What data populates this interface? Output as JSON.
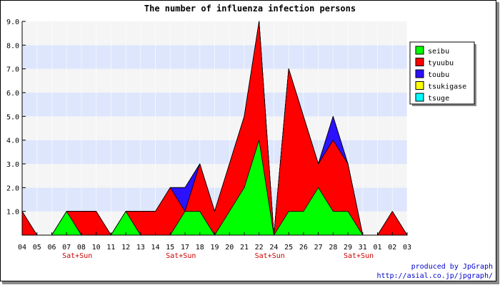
{
  "chart_data": {
    "type": "area",
    "stacked": true,
    "title": "The number of influenza infection persons",
    "x": [
      "04",
      "05",
      "06",
      "07",
      "08",
      "10",
      "11",
      "12",
      "13",
      "14",
      "15",
      "17",
      "18",
      "19",
      "20",
      "21",
      "22",
      "24",
      "25",
      "26",
      "27",
      "28",
      "29",
      "31",
      "01",
      "02",
      "03"
    ],
    "weekend_label": "Sat+Sun",
    "weekend_label_under": [
      "07",
      "15",
      "22",
      "29"
    ],
    "ylim": [
      0,
      9
    ],
    "yticks": [
      1,
      2,
      3,
      4,
      5,
      6,
      7,
      8,
      9
    ],
    "ytick_labels": [
      "1.0",
      "2.0",
      "3.0",
      "4.0",
      "5.0",
      "6.0",
      "7.0",
      "8.0",
      "9.0"
    ],
    "grid": "horizontal bands",
    "legend_position": "right",
    "series": [
      {
        "name": "seibu",
        "color": "#00ff00",
        "values": [
          0,
          0,
          0,
          1,
          0,
          0,
          0,
          1,
          0,
          0,
          0,
          1,
          1,
          0,
          1,
          2,
          4,
          0,
          1,
          1,
          2,
          1,
          1,
          0,
          0,
          0,
          0
        ]
      },
      {
        "name": "tyuubu",
        "color": "#ff0000",
        "values": [
          1,
          0,
          0,
          0,
          1,
          1,
          0,
          0,
          1,
          1,
          2,
          0,
          2,
          1,
          2,
          3,
          5,
          0,
          6,
          4,
          1,
          3,
          2,
          0,
          0,
          1,
          0
        ]
      },
      {
        "name": "toubu",
        "color": "#2b12ff",
        "values": [
          0,
          0,
          0,
          0,
          0,
          0,
          0,
          0,
          0,
          0,
          0,
          1,
          0,
          0,
          0,
          0,
          0,
          0,
          0,
          0,
          0,
          1,
          0,
          0,
          0,
          0,
          0
        ]
      },
      {
        "name": "tsukigase",
        "color": "#ffff00",
        "values": [
          0,
          0,
          0,
          0,
          0,
          0,
          0,
          0,
          0,
          0,
          0,
          0,
          0,
          0,
          0,
          0,
          0,
          0,
          0,
          0,
          0,
          0,
          0,
          0,
          0,
          0,
          0
        ]
      },
      {
        "name": "tsuge",
        "color": "#00ffff",
        "values": [
          0,
          0,
          0,
          0,
          0,
          0,
          0,
          0,
          0,
          0,
          0,
          0,
          0,
          0,
          0,
          0,
          0,
          0,
          0,
          0,
          0,
          0,
          0,
          0,
          0,
          0,
          0
        ]
      }
    ]
  },
  "credits": {
    "line1": "produced by JpGraph",
    "line2": "http://asial.co.jp/jpgraph/"
  }
}
